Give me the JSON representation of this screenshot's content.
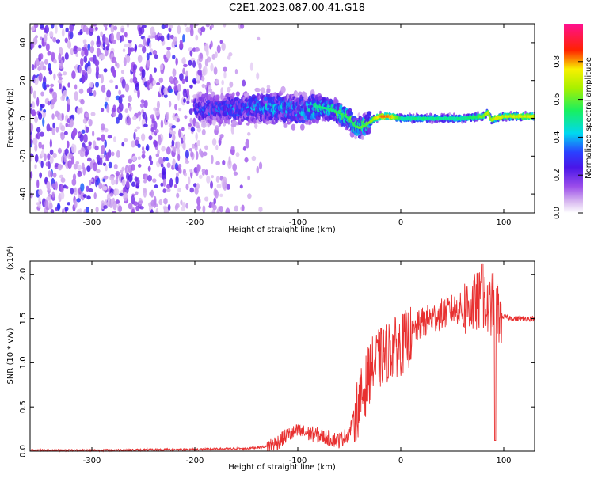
{
  "title": "C2E1.2023.087.00.41.G18",
  "chart_data": [
    {
      "type": "heatmap",
      "xlabel": "Height of straight line (km)",
      "ylabel": "Frequency (Hz)",
      "xlim": [
        -360,
        130
      ],
      "ylim": [
        -50,
        50
      ],
      "xticks": [
        -300,
        -200,
        -100,
        0,
        100
      ],
      "xticklabels": [
        "-300",
        "-200",
        "-100",
        "0",
        "100"
      ],
      "yticks": [
        -40,
        -20,
        0,
        20,
        40
      ],
      "yticklabels": [
        "-40",
        "-20",
        "0",
        "20",
        "40"
      ],
      "colorbar": {
        "label": "Normalized spectral amplitude",
        "range": [
          0.0,
          1.0
        ],
        "ticks": [
          0.0,
          0.2,
          0.4,
          0.6,
          0.8
        ],
        "ticklabels": [
          "0.0",
          "0.2",
          "0.4",
          "0.6",
          "0.8"
        ],
        "colormap": "white-violet-blue-cyan-green-yellow-red-magenta"
      },
      "ridge": {
        "x": [
          -190,
          -160,
          -130,
          -110,
          -90,
          -80,
          -70,
          -60,
          -50,
          -45,
          -40,
          -35,
          -30,
          -25,
          -20,
          -10,
          0,
          20,
          40,
          60,
          80,
          85,
          88,
          92,
          100,
          130
        ],
        "freq": [
          5,
          5,
          6,
          5,
          4,
          6,
          5,
          3,
          0,
          -4,
          -5,
          -4,
          -2,
          0,
          1,
          1,
          0,
          0,
          0,
          0,
          1,
          3,
          -1,
          0,
          1,
          1
        ],
        "amplitude": [
          0.3,
          0.35,
          0.4,
          0.4,
          0.45,
          0.5,
          0.5,
          0.55,
          0.55,
          0.55,
          0.6,
          0.6,
          0.6,
          0.7,
          0.8,
          0.8,
          0.5,
          0.5,
          0.5,
          0.5,
          0.6,
          0.7,
          0.6,
          0.75,
          0.7,
          0.7
        ]
      }
    },
    {
      "type": "line",
      "xlabel": "Height of straight line (km)",
      "ylabel": "SNR (10 * v/v)",
      "yscale_label": "(x10⁴)",
      "xlim": [
        -360,
        130
      ],
      "ylim": [
        0,
        2.15
      ],
      "xticks": [
        -300,
        -200,
        -100,
        0,
        100
      ],
      "xticklabels": [
        "-300",
        "-200",
        "-100",
        "0",
        "100"
      ],
      "yticks": [
        0.0,
        0.5,
        1.0,
        1.5,
        2.0
      ],
      "yticklabels": [
        "0.0",
        "0.5",
        "1.0",
        "1.5",
        "2.0"
      ],
      "color": "#e83030",
      "series": [
        {
          "x": [
            -360,
            -300,
            -250,
            -200,
            -150,
            -130,
            -120,
            -110,
            -100,
            -90,
            -80,
            -70,
            -60,
            -50,
            -45,
            -40,
            -35,
            -30,
            -25,
            -20,
            -15,
            -10,
            0,
            10,
            20,
            30,
            40,
            50,
            60,
            70,
            75,
            80,
            85,
            90,
            95,
            100,
            110,
            120,
            130
          ],
          "y": [
            0.01,
            0.01,
            0.015,
            0.02,
            0.03,
            0.05,
            0.1,
            0.18,
            0.22,
            0.2,
            0.18,
            0.15,
            0.12,
            0.2,
            0.4,
            0.55,
            0.7,
            0.9,
            1.0,
            1.05,
            1.1,
            1.15,
            1.2,
            1.3,
            1.45,
            1.5,
            1.55,
            1.6,
            1.62,
            1.65,
            1.7,
            1.65,
            1.6,
            1.7,
            1.55,
            1.52,
            1.5,
            1.5,
            1.5
          ]
        }
      ]
    }
  ]
}
